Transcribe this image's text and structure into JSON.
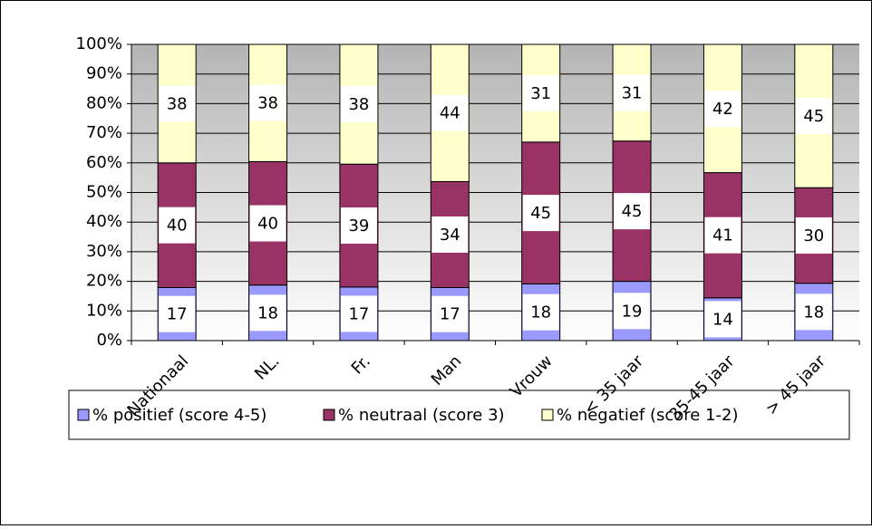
{
  "chart_data": {
    "type": "stacked_percent_bar",
    "categories": [
      "Nationaal",
      "NL.",
      "Fr.",
      "Man",
      "Vrouw",
      "< 35 jaar",
      "35-45 jaar",
      "> 45 jaar"
    ],
    "series": [
      {
        "name": "% positief (score 4-5)",
        "color": "#9999ff",
        "values": [
          17,
          18,
          17,
          17,
          18,
          19,
          14,
          18
        ]
      },
      {
        "name": "% neutraal (score 3)",
        "color": "#993366",
        "values": [
          40,
          40,
          39,
          34,
          45,
          45,
          41,
          30
        ]
      },
      {
        "name": "% negatief (score 1-2)",
        "color": "#ffffcc",
        "values": [
          38,
          38,
          38,
          44,
          31,
          31,
          42,
          45
        ]
      }
    ],
    "ylim": [
      0,
      100
    ],
    "yticks": [
      {
        "value": 0,
        "label": "0%"
      },
      {
        "value": 10,
        "label": "10%"
      },
      {
        "value": 20,
        "label": "20%"
      },
      {
        "value": 30,
        "label": "30%"
      },
      {
        "value": 40,
        "label": "40%"
      },
      {
        "value": 50,
        "label": "50%"
      },
      {
        "value": 60,
        "label": "60%"
      },
      {
        "value": 70,
        "label": "70%"
      },
      {
        "value": 80,
        "label": "80%"
      },
      {
        "value": 90,
        "label": "90%"
      },
      {
        "value": 100,
        "label": "100%"
      }
    ],
    "grid": true,
    "legend": "bottom"
  }
}
